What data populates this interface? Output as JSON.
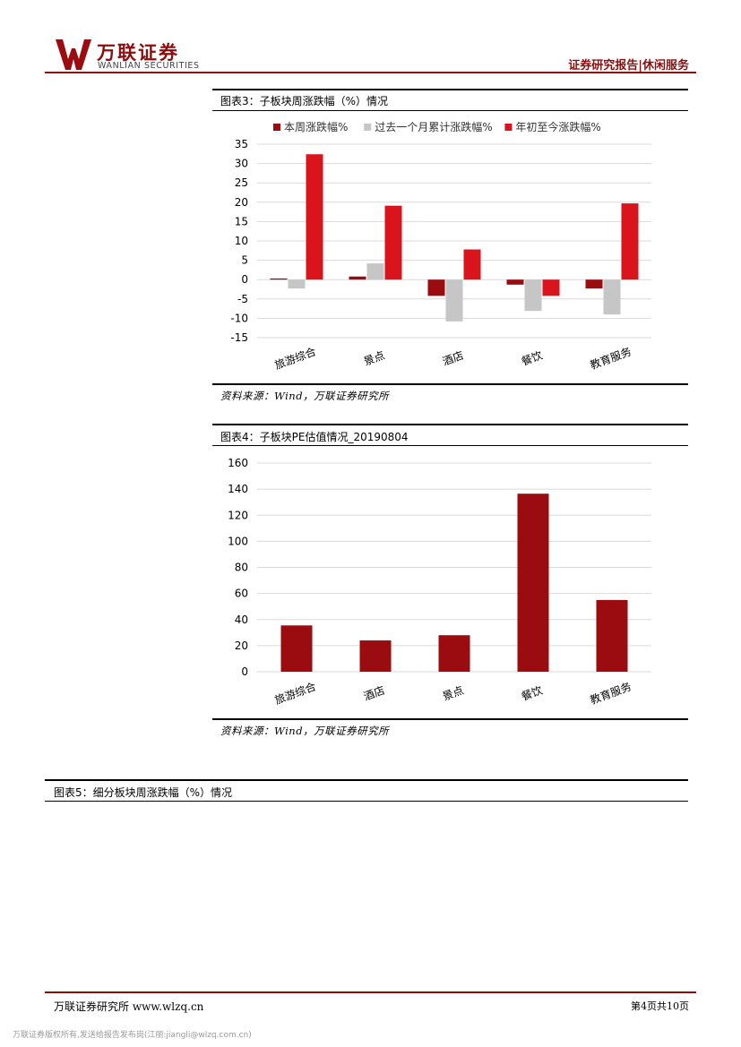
{
  "header": {
    "brand_cn": "万联证券",
    "brand_en": "WANLIAN SECURITIES",
    "report_tag": "证券研究报告|休闲服务"
  },
  "figure3": {
    "title": "图表3：子板块周涨跌幅（%）情况",
    "source": "资料来源：Wind，万联证券研究所",
    "chart_data": {
      "type": "bar",
      "categories": [
        "旅游综合",
        "景点",
        "酒店",
        "餐饮",
        "教育服务"
      ],
      "series": [
        {
          "name": "本周涨跌幅%",
          "values": [
            0.3,
            0.8,
            -4.2,
            -1.3,
            -2.3
          ],
          "color": "#9b0c10"
        },
        {
          "name": "过去一个月累计涨跌幅%",
          "values": [
            -2.3,
            4.2,
            -10.8,
            -8.1,
            -9.0
          ],
          "color": "#c6c6c6"
        },
        {
          "name": "年初至今涨跌幅%",
          "values": [
            32.4,
            19.1,
            7.8,
            -4.2,
            19.7
          ],
          "color": "#d9141c"
        }
      ],
      "yticks": [
        35,
        30,
        25,
        20,
        15,
        10,
        5,
        0,
        -5,
        -10,
        -15
      ],
      "ylim": [
        -15,
        35
      ],
      "grid": true,
      "legend": "top"
    }
  },
  "figure4": {
    "title": "图表4：子板块PE估值情况_20190804",
    "source": "资料来源：Wind，万联证券研究所",
    "chart_data": {
      "type": "bar",
      "categories": [
        "旅游综合",
        "酒店",
        "景点",
        "餐饮",
        "教育服务"
      ],
      "series": [
        {
          "values": [
            35.5,
            24.0,
            28.0,
            136.5,
            55.0
          ],
          "color": "#9b0c10"
        }
      ],
      "yticks": [
        160,
        140,
        120,
        100,
        80,
        60,
        40,
        20,
        0
      ],
      "ylim": [
        0,
        160
      ],
      "grid": true
    }
  },
  "figure5": {
    "title": "图表5：细分板块周涨跌幅（%）情况"
  },
  "footer": {
    "left": "万联证券研究所 www.wlzq.cn",
    "right": "第4页共10页",
    "copyright": "万联证券版权所有,发送给报告发布岗(江丽:jiangli@wlzq.com.cn)"
  }
}
